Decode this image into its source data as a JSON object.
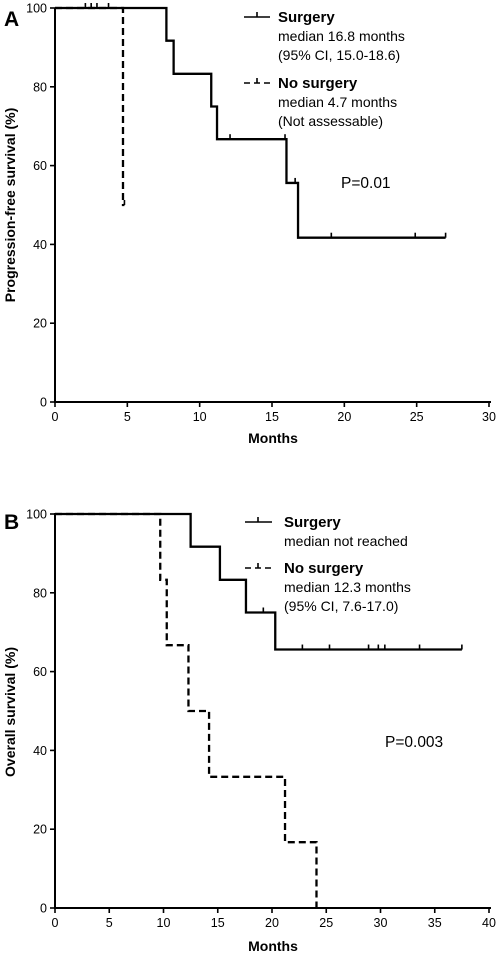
{
  "chart_data": [
    {
      "type": "line",
      "panel": "A",
      "ylabel": "Progression-free survival (%)",
      "xlabel": "Months",
      "xlim": [
        0,
        30
      ],
      "ylim": [
        0,
        100
      ],
      "xticks": [
        "0",
        "5",
        "10",
        "15",
        "20",
        "25",
        "30"
      ],
      "yticks": [
        "0",
        "20",
        "40",
        "60",
        "80",
        "100"
      ],
      "annotation": "P=0.01",
      "legend_position": "top-right",
      "series": [
        {
          "name": "Surgery",
          "style": "solid",
          "detail_lines": [
            "median 16.8 months",
            "(95% CI, 15.0-18.6)"
          ],
          "steps": [
            [
              0,
              100
            ],
            [
              7.7,
              91.7
            ],
            [
              8.2,
              83.3
            ],
            [
              10.8,
              75
            ],
            [
              11.2,
              66.7
            ],
            [
              16,
              55.6
            ],
            [
              16.8,
              41.7
            ],
            [
              27,
              41.7
            ]
          ],
          "censored": [
            [
              12.1,
              66.7
            ],
            [
              15.9,
              66.7
            ],
            [
              16.6,
              55.6
            ],
            [
              19.1,
              41.7
            ],
            [
              24.9,
              41.7
            ],
            [
              27,
              41.7
            ]
          ]
        },
        {
          "name": "No surgery",
          "style": "dashed",
          "detail_lines": [
            "median 4.7 months",
            "(Not assessable)"
          ],
          "steps": [
            [
              0,
              100
            ],
            [
              4.7,
              50
            ],
            [
              4.8,
              50
            ]
          ],
          "censored": [
            [
              2.1,
              100
            ],
            [
              2.5,
              100
            ],
            [
              2.9,
              100
            ],
            [
              3.7,
              100
            ],
            [
              4.8,
              50
            ]
          ]
        }
      ]
    },
    {
      "type": "line",
      "panel": "B",
      "ylabel": "Overall survival (%)",
      "xlabel": "Months",
      "xlim": [
        0,
        40
      ],
      "ylim": [
        0,
        100
      ],
      "xticks": [
        "0",
        "5",
        "10",
        "15",
        "20",
        "25",
        "30",
        "35",
        "40"
      ],
      "yticks": [
        "0",
        "20",
        "40",
        "60",
        "80",
        "100"
      ],
      "annotation": "P=0.003",
      "legend_position": "top-right",
      "series": [
        {
          "name": "Surgery",
          "style": "solid",
          "detail_lines": [
            "median not reached"
          ],
          "steps": [
            [
              0,
              100
            ],
            [
              12.5,
              91.7
            ],
            [
              15.2,
              83.3
            ],
            [
              17.6,
              75
            ],
            [
              20.3,
              65.6
            ],
            [
              37.5,
              65.6
            ]
          ],
          "censored": [
            [
              19.2,
              75
            ],
            [
              22.8,
              65.6
            ],
            [
              25.3,
              65.6
            ],
            [
              28.9,
              65.6
            ],
            [
              29.8,
              65.6
            ],
            [
              30.4,
              65.6
            ],
            [
              33.6,
              65.6
            ],
            [
              37.5,
              65.6
            ]
          ]
        },
        {
          "name": "No surgery",
          "style": "dashed",
          "detail_lines": [
            "median 12.3 months",
            "(95% CI, 7.6-17.0)"
          ],
          "steps": [
            [
              0,
              100
            ],
            [
              9.7,
              83.3
            ],
            [
              10.3,
              66.7
            ],
            [
              12.3,
              50
            ],
            [
              14.2,
              33.3
            ],
            [
              21.2,
              16.7
            ],
            [
              24.1,
              0
            ]
          ],
          "censored": []
        }
      ]
    }
  ]
}
